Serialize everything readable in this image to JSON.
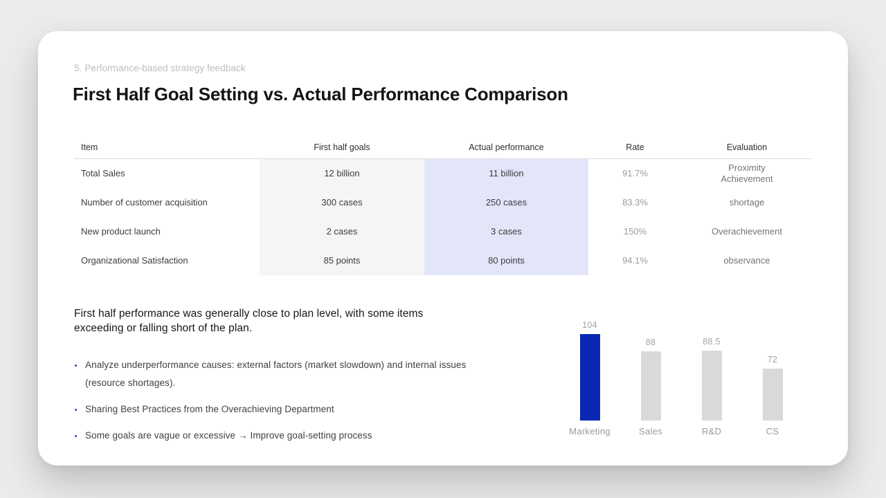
{
  "slide": {
    "eyebrow": "5. Performance-based strategy feedback",
    "title": "First Half Goal Setting vs. Actual Performance Comparison"
  },
  "table": {
    "columns": [
      "Item",
      "First half goals",
      "Actual performance",
      "Rate",
      "Evaluation"
    ],
    "rows": [
      {
        "item": "Total Sales",
        "goal": "12 billion",
        "actual": "11 billion",
        "rate": "91.7%",
        "evaluation": "Proximity\nAchievement"
      },
      {
        "item": "Number of customer acquisition",
        "goal": "300 cases",
        "actual": "250 cases",
        "rate": "83.3%",
        "evaluation": "shortage"
      },
      {
        "item": "New product launch",
        "goal": "2 cases",
        "actual": "3 cases",
        "rate": "150%",
        "evaluation": "Overachievement"
      },
      {
        "item": "Organizational Satisfaction",
        "goal": "85 points",
        "actual": "80 points",
        "rate": "94.1%",
        "evaluation": "observance"
      }
    ],
    "column_fill_goal": "#f5f5f3",
    "column_fill_actual": "#e3e6f8"
  },
  "summary": {
    "lead": "First half performance was generally close to plan level, with some items\nexceeding or falling short of the plan.",
    "bullets": [
      "Analyze underperformance causes: external factors (market slowdown) and internal issues (resource shortages).",
      "Sharing Best Practices from the Overachieving Department",
      "Some goals are vague or excessive → Improve goal-setting process"
    ]
  },
  "chart_data": {
    "type": "bar",
    "categories": [
      "Marketing",
      "Sales",
      "R&D",
      "CS"
    ],
    "values": [
      104,
      88,
      88.5,
      72
    ],
    "title": "",
    "xlabel": "",
    "ylabel": "",
    "legend": "none",
    "grid": false,
    "axes_visible": false,
    "highlight_index": 0,
    "colors": {
      "highlight": "#0a28b4",
      "default": "#d9d9d9"
    },
    "value_label_color": "#a3a3a3",
    "category_label_color": "#9a9a9a"
  }
}
